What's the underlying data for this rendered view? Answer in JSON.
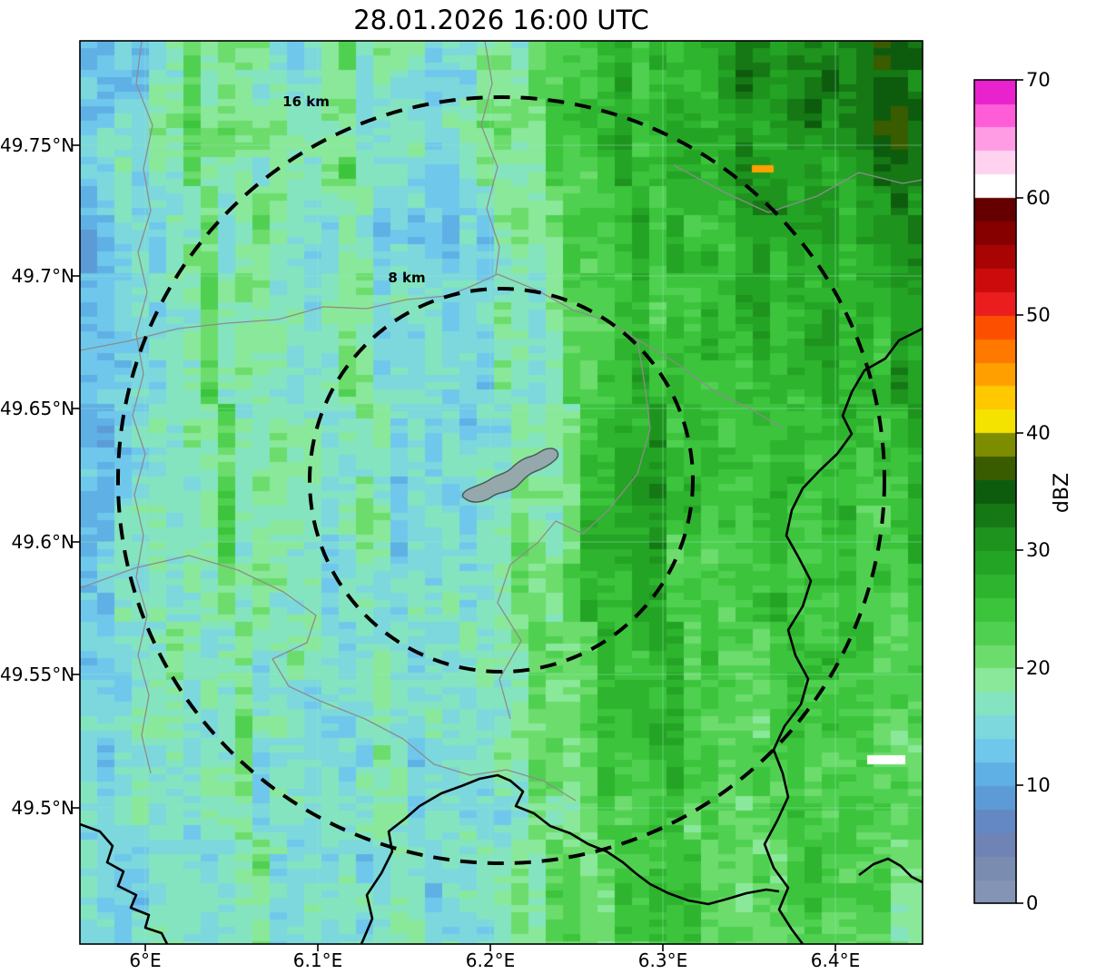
{
  "figure": {
    "title": "28.01.2026 16:00 UTC"
  },
  "axes": {
    "x_ticks": [
      "6°E",
      "6.1°E",
      "6.2°E",
      "6.3°E",
      "6.4°E"
    ],
    "y_ticks": [
      "49.75°N",
      "49.7°N",
      "49.65°N",
      "49.6°N",
      "49.55°N",
      "49.5°N"
    ]
  },
  "colorbar": {
    "label": "dBZ",
    "ticks": [
      "0",
      "10",
      "20",
      "30",
      "40",
      "50",
      "60",
      "70"
    ]
  },
  "rings": {
    "inner_label": "8 km",
    "outer_label": "16 km"
  },
  "chart_data": {
    "type": "heatmap",
    "title": "28.01.2026 16:00 UTC",
    "units": "dBZ",
    "x_tick_values": [
      6.0,
      6.1,
      6.2,
      6.3,
      6.4
    ],
    "y_tick_values": [
      49.75,
      49.7,
      49.65,
      49.6,
      49.55,
      49.5
    ],
    "lon_range": [
      5.96,
      6.45
    ],
    "lat_range": [
      49.45,
      49.79
    ],
    "colorbar_range": [
      0,
      70
    ],
    "range_rings_km": [
      8,
      16
    ],
    "colormap": {
      "vmin": 0,
      "vmax": 70,
      "step": 2,
      "colors": [
        "#8494b4",
        "#7a8cb0",
        "#6f84b4",
        "#6488c4",
        "#5c9bd6",
        "#5fb0e4",
        "#6fc8ec",
        "#7cd8dc",
        "#84e4c0",
        "#8ae89a",
        "#6cdc6c",
        "#50d050",
        "#3cc43c",
        "#2eb42e",
        "#24a424",
        "#1e941e",
        "#157815",
        "#0d5c0d",
        "#3a5c00",
        "#7e8c00",
        "#f4e200",
        "#ffc800",
        "#ffa000",
        "#ff7800",
        "#fc5000",
        "#ea1e1e",
        "#cc0c0c",
        "#a80404",
        "#860000",
        "#640000",
        "#ffffff",
        "#ffd2f0",
        "#ff9ce4",
        "#ff5cd8",
        "#e822cc"
      ]
    },
    "grid": {
      "cols": 20,
      "rows": 22,
      "values": [
        [
          12,
          12,
          16,
          20,
          18,
          16,
          20,
          18,
          16,
          14,
          18,
          22,
          24,
          26,
          28,
          30,
          30,
          32,
          32,
          30
        ],
        [
          10,
          12,
          18,
          20,
          18,
          16,
          18,
          16,
          14,
          16,
          20,
          22,
          24,
          26,
          28,
          30,
          32,
          34,
          32,
          30
        ],
        [
          12,
          14,
          20,
          22,
          20,
          18,
          16,
          14,
          16,
          18,
          20,
          22,
          26,
          28,
          30,
          28,
          30,
          32,
          34,
          32
        ],
        [
          14,
          16,
          18,
          20,
          16,
          18,
          20,
          16,
          14,
          16,
          18,
          20,
          24,
          26,
          28,
          30,
          28,
          30,
          32,
          30
        ],
        [
          12,
          14,
          16,
          18,
          20,
          18,
          16,
          14,
          12,
          14,
          18,
          22,
          24,
          26,
          26,
          28,
          30,
          28,
          30,
          28
        ],
        [
          10,
          12,
          16,
          18,
          18,
          16,
          16,
          14,
          12,
          14,
          16,
          20,
          24,
          26,
          28,
          26,
          28,
          28,
          30,
          28
        ],
        [
          12,
          14,
          18,
          20,
          18,
          16,
          18,
          16,
          14,
          14,
          16,
          20,
          22,
          24,
          26,
          28,
          26,
          28,
          28,
          26
        ],
        [
          10,
          12,
          16,
          18,
          20,
          18,
          16,
          14,
          14,
          16,
          16,
          18,
          22,
          26,
          28,
          26,
          26,
          28,
          26,
          26
        ],
        [
          12,
          14,
          16,
          20,
          18,
          16,
          18,
          16,
          14,
          14,
          16,
          18,
          24,
          28,
          26,
          24,
          26,
          26,
          28,
          26
        ],
        [
          10,
          12,
          18,
          20,
          18,
          18,
          16,
          16,
          14,
          14,
          16,
          20,
          24,
          26,
          28,
          26,
          24,
          26,
          26,
          24
        ],
        [
          12,
          14,
          16,
          18,
          20,
          18,
          16,
          14,
          14,
          16,
          16,
          20,
          26,
          28,
          26,
          24,
          26,
          24,
          26,
          24
        ],
        [
          10,
          14,
          18,
          20,
          18,
          16,
          18,
          16,
          14,
          14,
          16,
          20,
          26,
          28,
          26,
          26,
          24,
          26,
          24,
          24
        ],
        [
          12,
          16,
          18,
          18,
          20,
          18,
          16,
          14,
          14,
          16,
          18,
          22,
          26,
          26,
          24,
          26,
          24,
          24,
          26,
          24
        ],
        [
          12,
          14,
          16,
          18,
          18,
          16,
          16,
          16,
          14,
          16,
          18,
          22,
          26,
          24,
          26,
          24,
          26,
          24,
          24,
          22
        ],
        [
          14,
          16,
          18,
          16,
          18,
          18,
          16,
          14,
          16,
          16,
          18,
          22,
          24,
          26,
          24,
          24,
          24,
          26,
          24,
          22
        ],
        [
          12,
          14,
          16,
          18,
          16,
          16,
          18,
          16,
          14,
          16,
          18,
          20,
          24,
          24,
          26,
          24,
          24,
          24,
          22,
          24
        ],
        [
          14,
          16,
          18,
          16,
          18,
          16,
          16,
          14,
          16,
          16,
          18,
          22,
          24,
          26,
          24,
          22,
          24,
          24,
          22,
          22
        ],
        [
          12,
          14,
          16,
          18,
          16,
          18,
          16,
          16,
          14,
          16,
          18,
          20,
          22,
          24,
          24,
          22,
          24,
          22,
          24,
          22
        ],
        [
          14,
          16,
          16,
          18,
          16,
          16,
          18,
          16,
          16,
          14,
          16,
          20,
          22,
          24,
          22,
          24,
          22,
          22,
          24,
          22
        ],
        [
          12,
          14,
          16,
          16,
          18,
          16,
          16,
          14,
          16,
          16,
          18,
          20,
          22,
          22,
          24,
          22,
          22,
          24,
          22,
          20
        ],
        [
          14,
          14,
          16,
          18,
          16,
          16,
          18,
          16,
          14,
          16,
          18,
          20,
          22,
          24,
          22,
          22,
          24,
          22,
          22,
          20
        ],
        [
          12,
          14,
          16,
          16,
          18,
          16,
          16,
          16,
          16,
          14,
          18,
          20,
          22,
          22,
          22,
          24,
          22,
          22,
          20,
          20
        ]
      ]
    },
    "anomalies": [
      {
        "fx": 0.797,
        "fy": 0.138,
        "w": 24,
        "h": 8,
        "dbz": 44
      },
      {
        "fx": 0.934,
        "fy": 0.791,
        "w": 42,
        "h": 10,
        "dbz": 61
      }
    ]
  }
}
